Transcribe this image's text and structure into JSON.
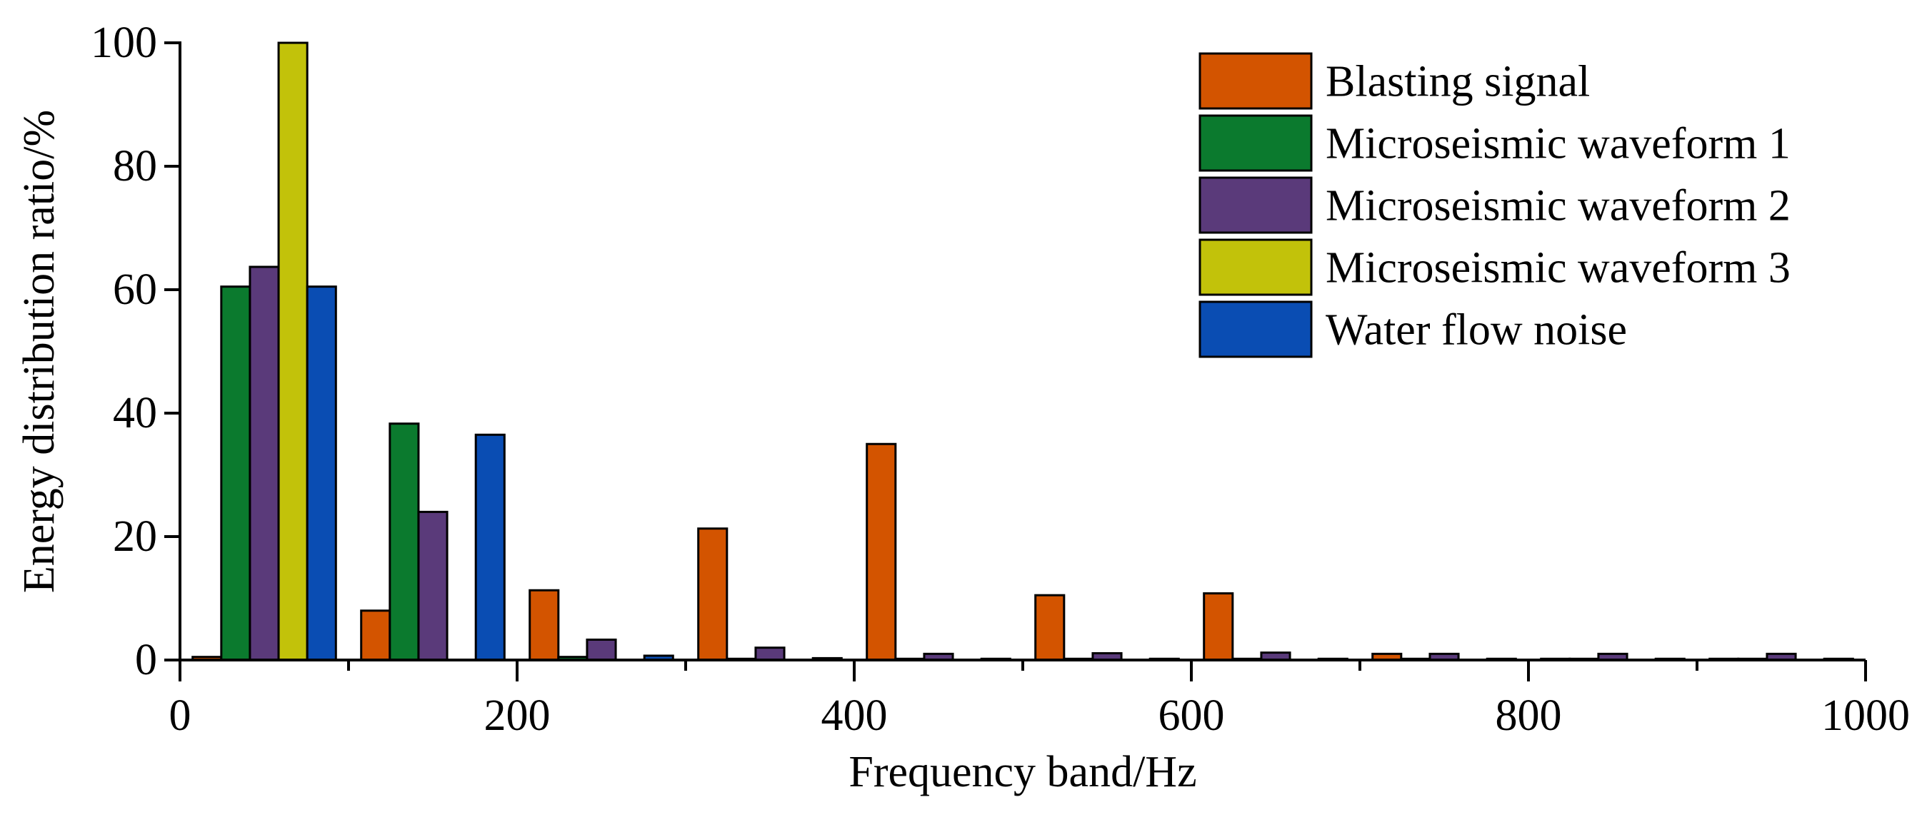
{
  "chart_data": {
    "type": "bar",
    "xlabel": "Frequency band/Hz",
    "ylabel": "Energy distribution ratio/%",
    "xlim": [
      0,
      1000
    ],
    "ylim": [
      0,
      100
    ],
    "xticks": [
      "0",
      "200",
      "400",
      "600",
      "800",
      "1000"
    ],
    "yticks": [
      "0",
      "20",
      "40",
      "60",
      "80",
      "100"
    ],
    "band_width_hz": 100,
    "band_starts": [
      0,
      100,
      200,
      300,
      400,
      500,
      600,
      700,
      800,
      900
    ],
    "legend_position": "top-right",
    "grid": false,
    "series": [
      {
        "name": "Blasting signal",
        "color": "#d35400",
        "values": [
          0.5,
          8.0,
          11.3,
          21.3,
          35.0,
          10.5,
          10.8,
          1.0,
          0.2,
          0.2
        ]
      },
      {
        "name": "Microseismic waveform 1",
        "color": "#0b7a2e",
        "values": [
          60.5,
          38.3,
          0.5,
          0.2,
          0.2,
          0.2,
          0.2,
          0.2,
          0.2,
          0.2
        ]
      },
      {
        "name": "Microseismic waveform 2",
        "color": "#5a3a7a",
        "values": [
          63.7,
          24.0,
          3.3,
          2.0,
          1.0,
          1.1,
          1.2,
          1.0,
          1.0,
          1.0
        ]
      },
      {
        "name": "Microseismic waveform 3",
        "color": "#c2c20a",
        "values": [
          100,
          0,
          0,
          0,
          0,
          0,
          0,
          0,
          0,
          0
        ]
      },
      {
        "name": "Water flow noise",
        "color": "#0a4db3",
        "values": [
          60.5,
          36.5,
          0.7,
          0.3,
          0.2,
          0.2,
          0.2,
          0.2,
          0.2,
          0.2
        ]
      }
    ]
  }
}
